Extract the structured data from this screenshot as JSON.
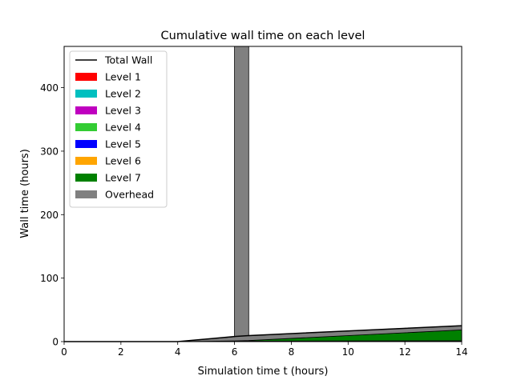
{
  "chart_data": {
    "type": "area",
    "title": "Cumulative wall time on each level",
    "xlabel": "Simulation time t (hours)",
    "ylabel": "Wall time (hours)",
    "xlim": [
      0,
      14
    ],
    "ylim": [
      0,
      465
    ],
    "xticks": [
      0,
      2,
      4,
      6,
      8,
      10,
      12,
      14
    ],
    "yticks": [
      0,
      100,
      200,
      300,
      400
    ],
    "grid": false,
    "legend_position": "top-left",
    "legend": [
      {
        "label": "Total Wall",
        "kind": "line",
        "color": "#000000"
      },
      {
        "label": "Level 1",
        "kind": "patch",
        "color": "#ff0000"
      },
      {
        "label": "Level 2",
        "kind": "patch",
        "color": "#00bfbf"
      },
      {
        "label": "Level 3",
        "kind": "patch",
        "color": "#bf00bf"
      },
      {
        "label": "Level 4",
        "kind": "patch",
        "color": "#33cc33"
      },
      {
        "label": "Level 5",
        "kind": "patch",
        "color": "#0000ff"
      },
      {
        "label": "Level 6",
        "kind": "patch",
        "color": "#ffa500"
      },
      {
        "label": "Level 7",
        "kind": "patch",
        "color": "#008000"
      },
      {
        "label": "Overhead",
        "kind": "patch",
        "color": "#808080"
      }
    ],
    "series": [
      {
        "name": "Level 1",
        "color": "#ff0000",
        "x": [
          0,
          4,
          6,
          6.5,
          14
        ],
        "y": [
          0,
          0,
          0.1,
          0.1,
          0.2
        ]
      },
      {
        "name": "Level 2",
        "color": "#00bfbf",
        "x": [
          0,
          4,
          6,
          6.5,
          14
        ],
        "y": [
          0,
          0,
          0.1,
          0.1,
          0.2
        ]
      },
      {
        "name": "Level 3",
        "color": "#bf00bf",
        "x": [
          0,
          4,
          6,
          6.5,
          14
        ],
        "y": [
          0,
          0,
          0.1,
          0.1,
          0.2
        ]
      },
      {
        "name": "Level 4",
        "color": "#33cc33",
        "x": [
          0,
          4,
          6,
          6.5,
          14
        ],
        "y": [
          0,
          0,
          0.1,
          0.1,
          0.2
        ]
      },
      {
        "name": "Level 5",
        "color": "#0000ff",
        "x": [
          0,
          4,
          6,
          6.5,
          14
        ],
        "y": [
          0,
          0,
          0.1,
          0.1,
          0.3
        ]
      },
      {
        "name": "Level 6",
        "color": "#ffa500",
        "x": [
          0,
          4,
          6,
          6.5,
          14
        ],
        "y": [
          0,
          0,
          0.1,
          0.2,
          0.3
        ]
      },
      {
        "name": "Level 7",
        "color": "#008000",
        "x": [
          0,
          4,
          6,
          6.5,
          14
        ],
        "y": [
          0,
          0,
          0.5,
          1,
          17
        ]
      },
      {
        "name": "Overhead",
        "color": "#808080",
        "x": [
          0,
          4,
          6,
          6,
          6.5,
          6.5,
          14
        ],
        "y": [
          0,
          0,
          6.5,
          465,
          465,
          7.5,
          6.8
        ]
      }
    ],
    "total_wall": {
      "name": "Total Wall",
      "color": "#000000",
      "x": [
        0,
        4,
        6,
        6.5,
        14
      ],
      "y": [
        0,
        0,
        8,
        9.5,
        25
      ]
    }
  }
}
